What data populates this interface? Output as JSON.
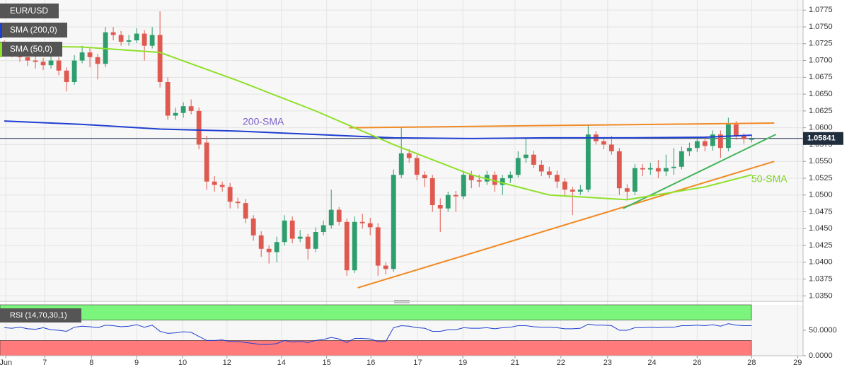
{
  "chart_data": {
    "type": "candlestick",
    "symbol": "EUR/USD",
    "up_color": "#2e9e6e",
    "down_color": "#de5a50",
    "ohlc": [
      [
        1.0722,
        1.073,
        1.0712,
        1.0718
      ],
      [
        1.0718,
        1.0724,
        1.0705,
        1.0712
      ],
      [
        1.0712,
        1.0716,
        1.0698,
        1.0705
      ],
      [
        1.0705,
        1.0712,
        1.0692,
        1.07
      ],
      [
        1.07,
        1.0706,
        1.0688,
        1.0698
      ],
      [
        1.0698,
        1.0704,
        1.0686,
        1.0693
      ],
      [
        1.0693,
        1.0708,
        1.0688,
        1.07
      ],
      [
        1.07,
        1.0705,
        1.0678,
        1.0685
      ],
      [
        1.0685,
        1.069,
        1.0654,
        1.0668
      ],
      [
        1.0668,
        1.0708,
        1.0664,
        1.07
      ],
      [
        1.07,
        1.0722,
        1.0696,
        1.0712
      ],
      [
        1.0712,
        1.0718,
        1.069,
        1.0705
      ],
      [
        1.0705,
        1.071,
        1.0672,
        1.0695
      ],
      [
        1.0695,
        1.075,
        1.069,
        1.0742
      ],
      [
        1.0742,
        1.075,
        1.073,
        1.0738
      ],
      [
        1.0738,
        1.0744,
        1.0722,
        1.0728
      ],
      [
        1.0728,
        1.0738,
        1.0722,
        1.073
      ],
      [
        1.073,
        1.0748,
        1.0726,
        1.074
      ],
      [
        1.074,
        1.0745,
        1.07,
        1.0722
      ],
      [
        1.0722,
        1.075,
        1.0718,
        1.0738
      ],
      [
        1.0738,
        1.0773,
        1.066,
        1.0668
      ],
      [
        1.0668,
        1.0675,
        1.0612,
        1.0618
      ],
      [
        1.0618,
        1.063,
        1.0612,
        1.0622
      ],
      [
        1.0622,
        1.0638,
        1.0615,
        1.0632
      ],
      [
        1.0632,
        1.0642,
        1.062,
        1.0625
      ],
      [
        1.0625,
        1.063,
        1.0568,
        1.0575
      ],
      [
        1.0578,
        1.0588,
        1.0508,
        1.052
      ],
      [
        1.052,
        1.0528,
        1.0505,
        1.0515
      ],
      [
        1.0515,
        1.052,
        1.0505,
        1.0512
      ],
      [
        1.0512,
        1.0518,
        1.048,
        1.049
      ],
      [
        1.049,
        1.0496,
        1.048,
        1.0488
      ],
      [
        1.0488,
        1.0494,
        1.0458,
        1.0465
      ],
      [
        1.0465,
        1.047,
        1.0432,
        1.044
      ],
      [
        1.044,
        1.0446,
        1.0408,
        1.042
      ],
      [
        1.042,
        1.0425,
        1.0398,
        1.0415
      ],
      [
        1.0415,
        1.0438,
        1.04,
        1.043
      ],
      [
        1.043,
        1.047,
        1.0425,
        1.0462
      ],
      [
        1.0462,
        1.0468,
        1.0428,
        1.0435
      ],
      [
        1.0435,
        1.0448,
        1.043,
        1.0438
      ],
      [
        1.0438,
        1.0442,
        1.0404,
        1.042
      ],
      [
        1.042,
        1.0452,
        1.0415,
        1.0445
      ],
      [
        1.0445,
        1.0462,
        1.044,
        1.0455
      ],
      [
        1.0455,
        1.0508,
        1.045,
        1.0478
      ],
      [
        1.0478,
        1.0482,
        1.0455,
        1.046
      ],
      [
        1.046,
        1.0465,
        1.038,
        1.0388
      ],
      [
        1.0388,
        1.0468,
        1.0384,
        1.046
      ],
      [
        1.046,
        1.0472,
        1.045,
        1.0458
      ],
      [
        1.0458,
        1.0466,
        1.044,
        1.0452
      ],
      [
        1.0452,
        1.0458,
        1.038,
        1.0395
      ],
      [
        1.0395,
        1.04,
        1.0382,
        1.039
      ],
      [
        1.039,
        1.0538,
        1.0386,
        1.053
      ],
      [
        1.053,
        1.06,
        1.0525,
        1.0562
      ],
      [
        1.0562,
        1.0568,
        1.0548,
        1.0555
      ],
      [
        1.0555,
        1.056,
        1.0522,
        1.053
      ],
      [
        1.053,
        1.0535,
        1.0512,
        1.0525
      ],
      [
        1.0525,
        1.053,
        1.0475,
        1.0485
      ],
      [
        1.0485,
        1.0495,
        1.0445,
        1.048
      ],
      [
        1.048,
        1.0505,
        1.0475,
        1.05
      ],
      [
        1.05,
        1.0506,
        1.0475,
        1.0498
      ],
      [
        1.0498,
        1.0536,
        1.0494,
        1.053
      ],
      [
        1.053,
        1.0536,
        1.051,
        1.0522
      ],
      [
        1.0522,
        1.053,
        1.0512,
        1.052
      ],
      [
        1.052,
        1.0536,
        1.0515,
        1.053
      ],
      [
        1.053,
        1.0535,
        1.0505,
        1.0515
      ],
      [
        1.0515,
        1.053,
        1.05,
        1.0525
      ],
      [
        1.0525,
        1.0535,
        1.0518,
        1.053
      ],
      [
        1.053,
        1.0565,
        1.0526,
        1.0555
      ],
      [
        1.0555,
        1.0585,
        1.0548,
        1.056
      ],
      [
        1.056,
        1.0566,
        1.054,
        1.0545
      ],
      [
        1.0545,
        1.0552,
        1.0528,
        1.0535
      ],
      [
        1.0535,
        1.0542,
        1.0525,
        1.053
      ],
      [
        1.053,
        1.0536,
        1.051,
        1.052
      ],
      [
        1.052,
        1.0525,
        1.05,
        1.0508
      ],
      [
        1.0508,
        1.0512,
        1.047,
        1.0505
      ],
      [
        1.0505,
        1.0515,
        1.05,
        1.0508
      ],
      [
        1.0508,
        1.0605,
        1.0504,
        1.059
      ],
      [
        1.059,
        1.0595,
        1.0575,
        1.058
      ],
      [
        1.058,
        1.0586,
        1.0568,
        1.0575
      ],
      [
        1.0575,
        1.0588,
        1.056,
        1.0565
      ],
      [
        1.0565,
        1.057,
        1.05,
        1.051
      ],
      [
        1.051,
        1.0516,
        1.0492,
        1.0505
      ],
      [
        1.0505,
        1.0546,
        1.05,
        1.054
      ],
      [
        1.054,
        1.0546,
        1.0528,
        1.0538
      ],
      [
        1.0538,
        1.0548,
        1.053,
        1.054
      ],
      [
        1.054,
        1.0552,
        1.0525,
        1.0535
      ],
      [
        1.0535,
        1.056,
        1.0528,
        1.054
      ],
      [
        1.054,
        1.057,
        1.053,
        1.0542
      ],
      [
        1.0542,
        1.0572,
        1.0538,
        1.0565
      ],
      [
        1.0565,
        1.0578,
        1.0558,
        1.057
      ],
      [
        1.057,
        1.0586,
        1.0564,
        1.058
      ],
      [
        1.058,
        1.0586,
        1.0565,
        1.0573
      ],
      [
        1.0573,
        1.0596,
        1.0566,
        1.059
      ],
      [
        1.059,
        1.0596,
        1.0555,
        1.057
      ],
      [
        1.057,
        1.0615,
        1.0565,
        1.0605
      ],
      [
        1.0605,
        1.061,
        1.0582,
        1.0588
      ],
      [
        1.0588,
        1.0592,
        1.0576,
        1.0583
      ],
      [
        1.0582,
        1.059,
        1.0578,
        1.0584
      ]
    ],
    "series": [
      {
        "name": "SMA (200,0)",
        "color": "#1f3fd1",
        "x": [
          0,
          10,
          20,
          30,
          40,
          50,
          60,
          70,
          80,
          90,
          96
        ],
        "values": [
          1.061,
          1.0605,
          1.0598,
          1.0595,
          1.059,
          1.0585,
          1.0584,
          1.0585,
          1.0585,
          1.0586,
          1.0589
        ]
      },
      {
        "name": "SMA (50,0)",
        "color": "#8fe02a",
        "x": [
          0,
          10,
          20,
          30,
          40,
          50,
          60,
          70,
          80,
          90,
          96
        ],
        "values": [
          1.0722,
          1.072,
          1.0712,
          1.067,
          1.0625,
          1.0575,
          1.053,
          1.05,
          1.0493,
          1.0512,
          1.053
        ]
      }
    ],
    "trendlines": [
      {
        "color": "#f08a24",
        "x": [
          44.3,
          98.9
        ],
        "values": [
          1.06,
          1.0607
        ]
      },
      {
        "color": "#f08a24",
        "x": [
          45.4,
          98.9
        ],
        "values": [
          1.0362,
          1.055
        ]
      },
      {
        "color": "#44b35a",
        "x": [
          79.5,
          99.1
        ],
        "values": [
          1.048,
          1.059
        ]
      }
    ],
    "annotations": [
      "200-SMA",
      "50-SMA"
    ],
    "current_price": 1.05841,
    "xlim": [
      -0.55,
      102.6
    ],
    "ylim": [
      1.0343,
      1.079
    ],
    "yticks": [
      {
        "value": 1.035,
        "label": "1.0350"
      },
      {
        "value": 1.0375,
        "label": "1.0375"
      },
      {
        "value": 1.04,
        "label": "1.0400"
      },
      {
        "value": 1.0425,
        "label": "1.0425"
      },
      {
        "value": 1.045,
        "label": "1.0450"
      },
      {
        "value": 1.0475,
        "label": "1.0475"
      },
      {
        "value": 1.05,
        "label": "1.0500"
      },
      {
        "value": 1.0525,
        "label": "1.0525"
      },
      {
        "value": 1.055,
        "label": "1.0550"
      },
      {
        "value": 1.0575,
        "label": "1.0575"
      },
      {
        "value": 1.06,
        "label": "1.0600"
      },
      {
        "value": 1.0625,
        "label": "1.0625"
      },
      {
        "value": 1.065,
        "label": "1.0650"
      },
      {
        "value": 1.0675,
        "label": "1.0675"
      },
      {
        "value": 1.07,
        "label": "1.0700"
      },
      {
        "value": 1.0725,
        "label": "1.0725"
      },
      {
        "value": 1.075,
        "label": "1.0750"
      },
      {
        "value": 1.0775,
        "label": "1.0775"
      }
    ],
    "xticks": [
      {
        "value": 0.2,
        "label": "Jun"
      },
      {
        "value": 5.2,
        "label": "7"
      },
      {
        "value": 11.2,
        "label": "8"
      },
      {
        "value": 17,
        "label": "9"
      },
      {
        "value": 22.9,
        "label": "10"
      },
      {
        "value": 28.6,
        "label": "12"
      },
      {
        "value": 35.6,
        "label": "14"
      },
      {
        "value": 41.4,
        "label": "15"
      },
      {
        "value": 47.1,
        "label": "16"
      },
      {
        "value": 53.1,
        "label": "17"
      },
      {
        "value": 58.9,
        "label": "19"
      },
      {
        "value": 65.6,
        "label": "21"
      },
      {
        "value": 71.5,
        "label": "22"
      },
      {
        "value": 77.5,
        "label": "23"
      },
      {
        "value": 83.2,
        "label": "24"
      },
      {
        "value": 89,
        "label": "26"
      },
      {
        "value": 96,
        "label": "28"
      },
      {
        "value": 101.9,
        "label": "29"
      }
    ],
    "grid": true,
    "rsi": {
      "label": "RSI (14,70,30,1)",
      "color": "#1f3fd1",
      "ylim": [
        0,
        100
      ],
      "overbought": 70,
      "oversold": 30,
      "yticks": [
        {
          "value": 50,
          "label": "50.0000"
        },
        {
          "value": 0,
          "label": "0.0000"
        }
      ],
      "values": [
        55,
        54,
        56,
        53,
        52,
        55,
        51,
        50,
        48,
        56,
        58,
        57,
        55,
        60,
        59,
        57,
        58,
        61,
        56,
        60,
        48,
        44,
        45,
        47,
        46,
        38,
        30,
        30,
        31,
        28,
        28,
        26,
        24,
        22,
        22,
        24,
        30,
        27,
        28,
        26,
        30,
        32,
        36,
        33,
        26,
        34,
        34,
        33,
        28,
        28,
        55,
        59,
        58,
        55,
        54,
        48,
        48,
        51,
        51,
        55,
        54,
        54,
        55,
        53,
        55,
        56,
        59,
        59,
        57,
        56,
        56,
        55,
        53,
        53,
        54,
        62,
        60,
        60,
        59,
        50,
        50,
        55,
        55,
        56,
        55,
        56,
        56,
        59,
        59,
        60,
        59,
        61,
        58,
        63,
        60,
        59,
        59
      ]
    }
  }
}
